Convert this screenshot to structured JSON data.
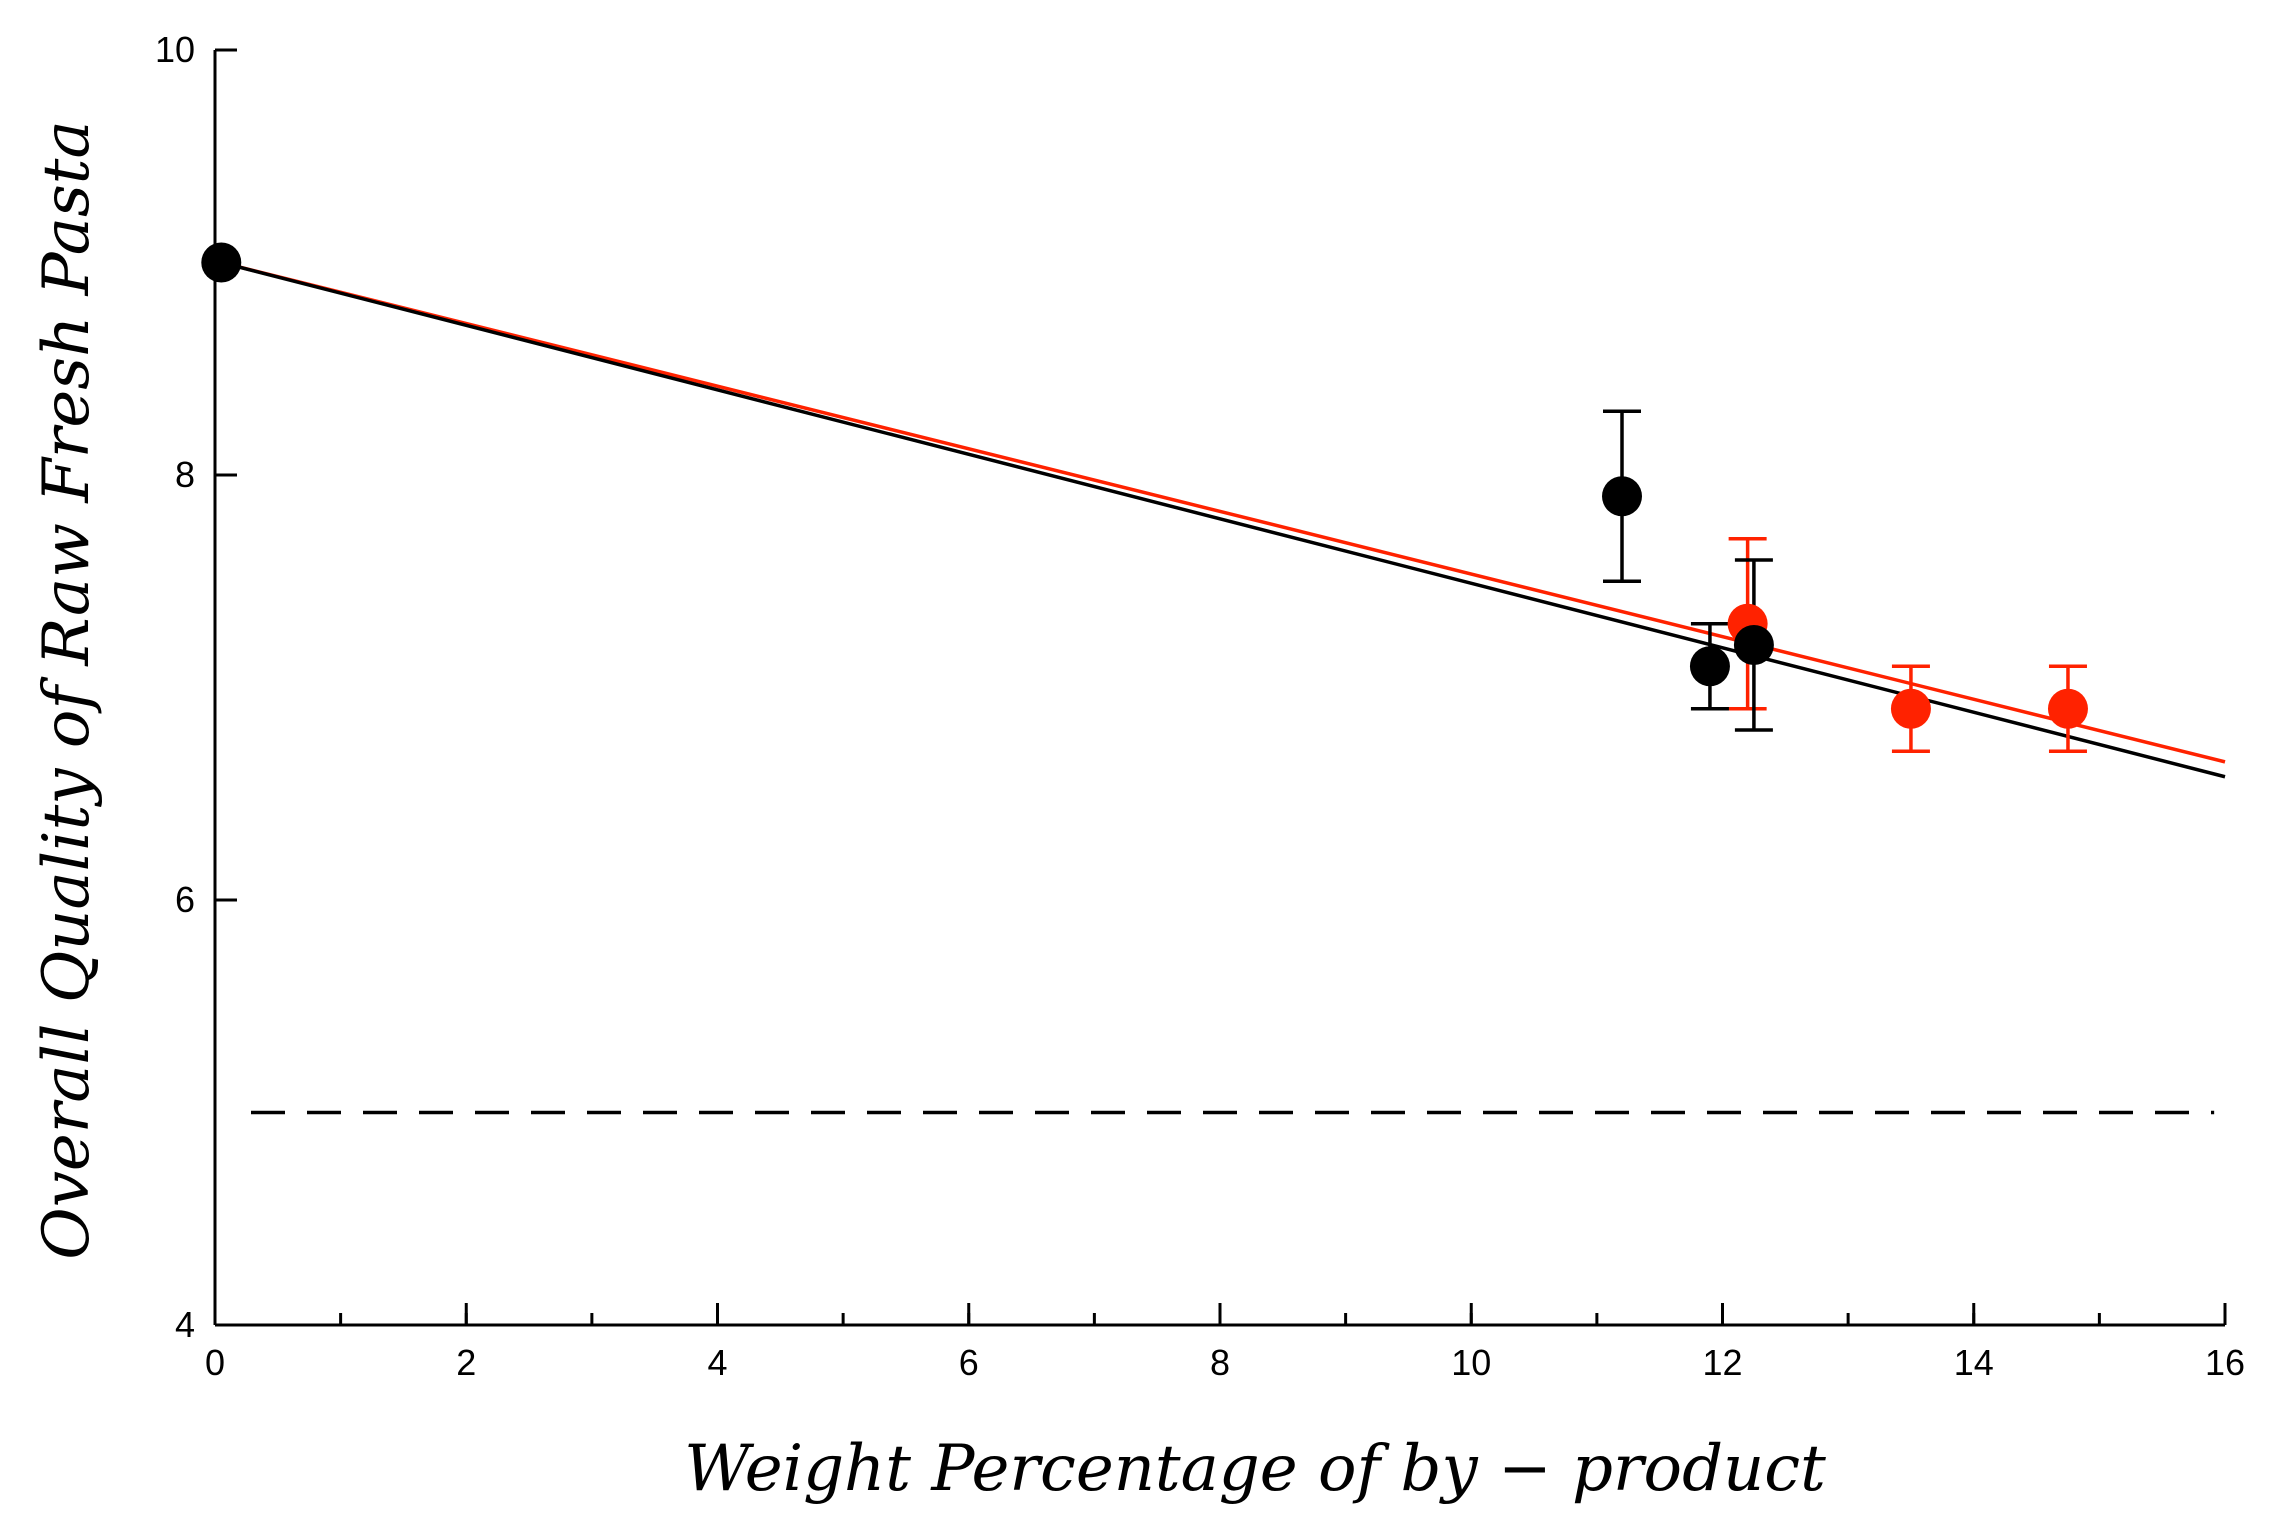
{
  "chart_data": {
    "type": "scatter",
    "title": "",
    "xlabel": "Weight Percentage of by − product",
    "ylabel": "Overall Quality of Raw Fresh Pasta",
    "xlim": [
      0,
      16
    ],
    "ylim": [
      4,
      10
    ],
    "xticks": [
      0,
      2,
      4,
      6,
      8,
      10,
      12,
      14,
      16
    ],
    "xtick_labels": [
      "0",
      "2",
      "4",
      "6",
      "8",
      "10",
      "12",
      "14",
      "16"
    ],
    "yticks": [
      4,
      6,
      8,
      10
    ],
    "ytick_labels": [
      "4",
      "6",
      "8",
      "10"
    ],
    "x_minor_step": 1,
    "grid": false,
    "series": [
      {
        "name": "black",
        "color": "#000000",
        "points": [
          {
            "x": 0.05,
            "y": 9.0,
            "err": 0
          },
          {
            "x": 11.2,
            "y": 7.9,
            "err": 0.4
          },
          {
            "x": 11.9,
            "y": 7.1,
            "err": 0.2
          },
          {
            "x": 12.25,
            "y": 7.2,
            "err": 0.4
          }
        ],
        "fit": {
          "x": [
            0.05,
            16
          ],
          "y": [
            9.0,
            6.58
          ]
        }
      },
      {
        "name": "red",
        "color": "#ff2200",
        "points": [
          {
            "x": 12.2,
            "y": 7.3,
            "err": 0.4
          },
          {
            "x": 13.5,
            "y": 6.9,
            "err": 0.2
          },
          {
            "x": 14.75,
            "y": 6.9,
            "err": 0.2
          }
        ],
        "fit": {
          "x": [
            0.05,
            16
          ],
          "y": [
            9.0,
            6.65
          ]
        }
      }
    ],
    "reference_line": {
      "y": 5.0,
      "x": [
        0,
        15.85
      ],
      "style": "dashed",
      "color": "#000000"
    }
  }
}
